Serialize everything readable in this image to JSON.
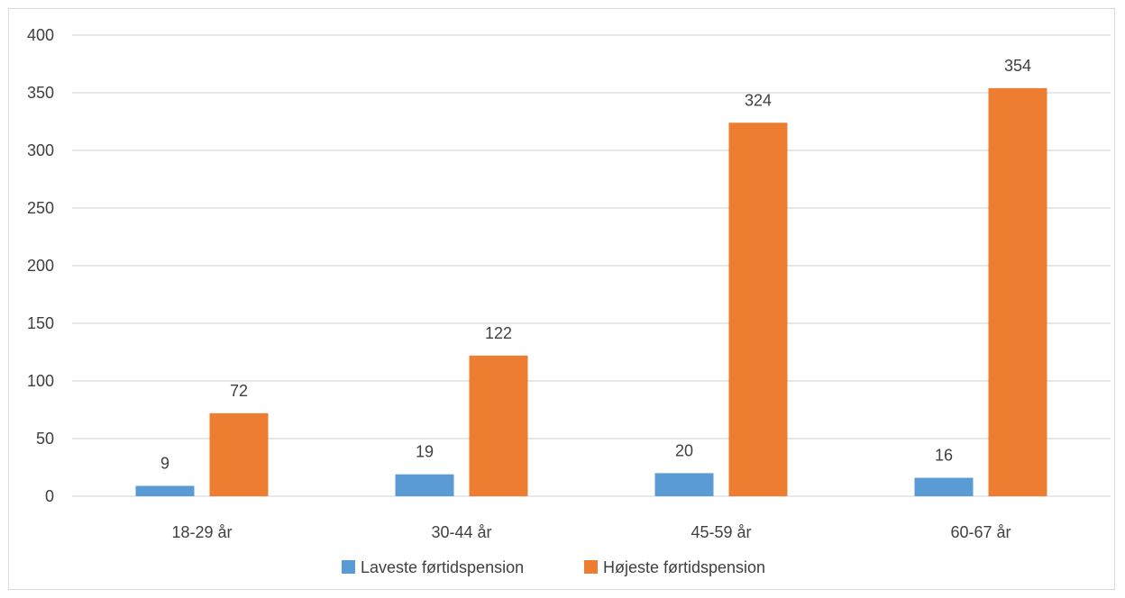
{
  "chart_data": {
    "type": "bar",
    "title": "",
    "xlabel": "",
    "ylabel": "",
    "categories": [
      "18-29 år",
      "30-44 år",
      "45-59 år",
      "60-67 år"
    ],
    "series": [
      {
        "name": "Laveste førtidspension",
        "values": [
          9,
          19,
          20,
          16
        ],
        "color": "#5b9bd5"
      },
      {
        "name": "Højeste førtidspension",
        "values": [
          72,
          122,
          324,
          354
        ],
        "color": "#ed7d31"
      }
    ],
    "ylim": [
      0,
      400
    ],
    "yticks": [
      0,
      50,
      100,
      150,
      200,
      250,
      300,
      350,
      400
    ],
    "grid": true,
    "legend": "bottom",
    "data_labels": true,
    "colors": {
      "gridline": "#d9d9d9",
      "text": "#404040",
      "frame": "#d9d9d9"
    }
  }
}
